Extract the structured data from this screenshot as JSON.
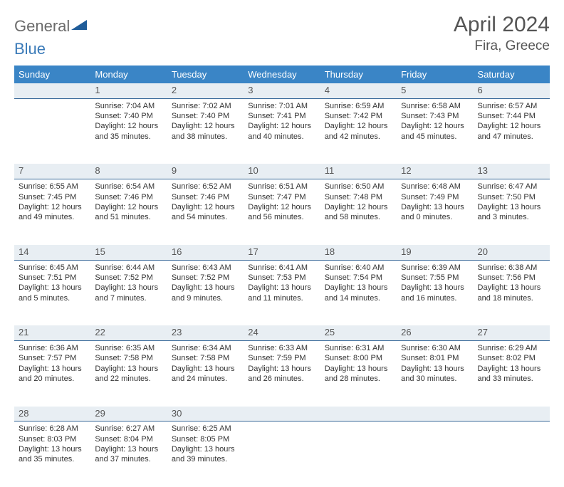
{
  "brand": {
    "part1": "General",
    "part2": "Blue",
    "icon_color": "#1f5c99"
  },
  "title": {
    "month_year": "April 2024",
    "location": "Fira, Greece"
  },
  "colors": {
    "header_bg": "#3a85c6",
    "daynum_bg": "#e8eef3",
    "daynum_border": "#3a6a9a",
    "text": "#333333"
  },
  "weekdays": [
    "Sunday",
    "Monday",
    "Tuesday",
    "Wednesday",
    "Thursday",
    "Friday",
    "Saturday"
  ],
  "weeks": [
    [
      {
        "n": "",
        "sunrise": "",
        "sunset": "",
        "daylight": ""
      },
      {
        "n": "1",
        "sunrise": "Sunrise: 7:04 AM",
        "sunset": "Sunset: 7:40 PM",
        "daylight": "Daylight: 12 hours and 35 minutes."
      },
      {
        "n": "2",
        "sunrise": "Sunrise: 7:02 AM",
        "sunset": "Sunset: 7:40 PM",
        "daylight": "Daylight: 12 hours and 38 minutes."
      },
      {
        "n": "3",
        "sunrise": "Sunrise: 7:01 AM",
        "sunset": "Sunset: 7:41 PM",
        "daylight": "Daylight: 12 hours and 40 minutes."
      },
      {
        "n": "4",
        "sunrise": "Sunrise: 6:59 AM",
        "sunset": "Sunset: 7:42 PM",
        "daylight": "Daylight: 12 hours and 42 minutes."
      },
      {
        "n": "5",
        "sunrise": "Sunrise: 6:58 AM",
        "sunset": "Sunset: 7:43 PM",
        "daylight": "Daylight: 12 hours and 45 minutes."
      },
      {
        "n": "6",
        "sunrise": "Sunrise: 6:57 AM",
        "sunset": "Sunset: 7:44 PM",
        "daylight": "Daylight: 12 hours and 47 minutes."
      }
    ],
    [
      {
        "n": "7",
        "sunrise": "Sunrise: 6:55 AM",
        "sunset": "Sunset: 7:45 PM",
        "daylight": "Daylight: 12 hours and 49 minutes."
      },
      {
        "n": "8",
        "sunrise": "Sunrise: 6:54 AM",
        "sunset": "Sunset: 7:46 PM",
        "daylight": "Daylight: 12 hours and 51 minutes."
      },
      {
        "n": "9",
        "sunrise": "Sunrise: 6:52 AM",
        "sunset": "Sunset: 7:46 PM",
        "daylight": "Daylight: 12 hours and 54 minutes."
      },
      {
        "n": "10",
        "sunrise": "Sunrise: 6:51 AM",
        "sunset": "Sunset: 7:47 PM",
        "daylight": "Daylight: 12 hours and 56 minutes."
      },
      {
        "n": "11",
        "sunrise": "Sunrise: 6:50 AM",
        "sunset": "Sunset: 7:48 PM",
        "daylight": "Daylight: 12 hours and 58 minutes."
      },
      {
        "n": "12",
        "sunrise": "Sunrise: 6:48 AM",
        "sunset": "Sunset: 7:49 PM",
        "daylight": "Daylight: 13 hours and 0 minutes."
      },
      {
        "n": "13",
        "sunrise": "Sunrise: 6:47 AM",
        "sunset": "Sunset: 7:50 PM",
        "daylight": "Daylight: 13 hours and 3 minutes."
      }
    ],
    [
      {
        "n": "14",
        "sunrise": "Sunrise: 6:45 AM",
        "sunset": "Sunset: 7:51 PM",
        "daylight": "Daylight: 13 hours and 5 minutes."
      },
      {
        "n": "15",
        "sunrise": "Sunrise: 6:44 AM",
        "sunset": "Sunset: 7:52 PM",
        "daylight": "Daylight: 13 hours and 7 minutes."
      },
      {
        "n": "16",
        "sunrise": "Sunrise: 6:43 AM",
        "sunset": "Sunset: 7:52 PM",
        "daylight": "Daylight: 13 hours and 9 minutes."
      },
      {
        "n": "17",
        "sunrise": "Sunrise: 6:41 AM",
        "sunset": "Sunset: 7:53 PM",
        "daylight": "Daylight: 13 hours and 11 minutes."
      },
      {
        "n": "18",
        "sunrise": "Sunrise: 6:40 AM",
        "sunset": "Sunset: 7:54 PM",
        "daylight": "Daylight: 13 hours and 14 minutes."
      },
      {
        "n": "19",
        "sunrise": "Sunrise: 6:39 AM",
        "sunset": "Sunset: 7:55 PM",
        "daylight": "Daylight: 13 hours and 16 minutes."
      },
      {
        "n": "20",
        "sunrise": "Sunrise: 6:38 AM",
        "sunset": "Sunset: 7:56 PM",
        "daylight": "Daylight: 13 hours and 18 minutes."
      }
    ],
    [
      {
        "n": "21",
        "sunrise": "Sunrise: 6:36 AM",
        "sunset": "Sunset: 7:57 PM",
        "daylight": "Daylight: 13 hours and 20 minutes."
      },
      {
        "n": "22",
        "sunrise": "Sunrise: 6:35 AM",
        "sunset": "Sunset: 7:58 PM",
        "daylight": "Daylight: 13 hours and 22 minutes."
      },
      {
        "n": "23",
        "sunrise": "Sunrise: 6:34 AM",
        "sunset": "Sunset: 7:58 PM",
        "daylight": "Daylight: 13 hours and 24 minutes."
      },
      {
        "n": "24",
        "sunrise": "Sunrise: 6:33 AM",
        "sunset": "Sunset: 7:59 PM",
        "daylight": "Daylight: 13 hours and 26 minutes."
      },
      {
        "n": "25",
        "sunrise": "Sunrise: 6:31 AM",
        "sunset": "Sunset: 8:00 PM",
        "daylight": "Daylight: 13 hours and 28 minutes."
      },
      {
        "n": "26",
        "sunrise": "Sunrise: 6:30 AM",
        "sunset": "Sunset: 8:01 PM",
        "daylight": "Daylight: 13 hours and 30 minutes."
      },
      {
        "n": "27",
        "sunrise": "Sunrise: 6:29 AM",
        "sunset": "Sunset: 8:02 PM",
        "daylight": "Daylight: 13 hours and 33 minutes."
      }
    ],
    [
      {
        "n": "28",
        "sunrise": "Sunrise: 6:28 AM",
        "sunset": "Sunset: 8:03 PM",
        "daylight": "Daylight: 13 hours and 35 minutes."
      },
      {
        "n": "29",
        "sunrise": "Sunrise: 6:27 AM",
        "sunset": "Sunset: 8:04 PM",
        "daylight": "Daylight: 13 hours and 37 minutes."
      },
      {
        "n": "30",
        "sunrise": "Sunrise: 6:25 AM",
        "sunset": "Sunset: 8:05 PM",
        "daylight": "Daylight: 13 hours and 39 minutes."
      },
      {
        "n": "",
        "sunrise": "",
        "sunset": "",
        "daylight": ""
      },
      {
        "n": "",
        "sunrise": "",
        "sunset": "",
        "daylight": ""
      },
      {
        "n": "",
        "sunrise": "",
        "sunset": "",
        "daylight": ""
      },
      {
        "n": "",
        "sunrise": "",
        "sunset": "",
        "daylight": ""
      }
    ]
  ]
}
